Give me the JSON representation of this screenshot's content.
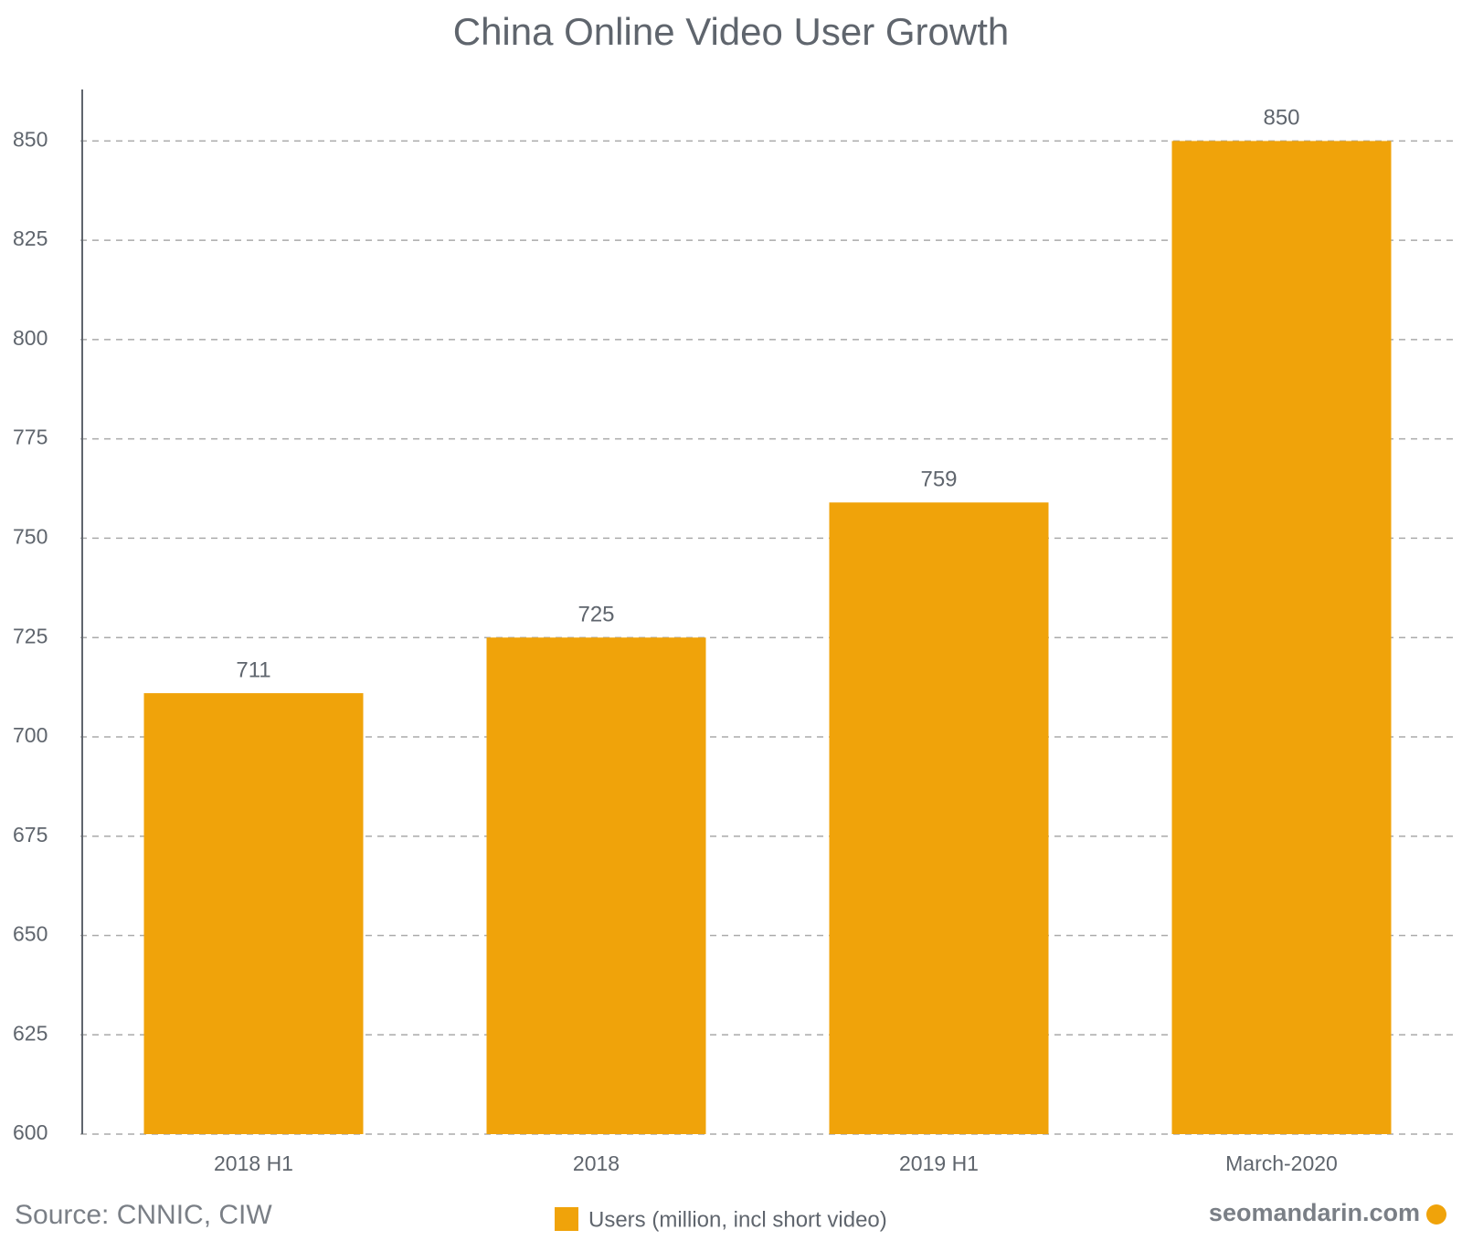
{
  "chart_data": {
    "type": "bar",
    "title": "China Online Video User Growth",
    "categories": [
      "2018 H1",
      "2018",
      "2019 H1",
      "March-2020"
    ],
    "series": [
      {
        "name": "Users (million, incl short video)",
        "color": "#f0a30a",
        "values": [
          711,
          725,
          759,
          850
        ]
      }
    ],
    "ylim": [
      600,
      862.5
    ],
    "yticks": [
      600,
      625,
      650,
      675,
      700,
      725,
      750,
      775,
      800,
      825,
      850
    ],
    "grid": true,
    "source": "Source:  CNNIC, CIW",
    "watermark": "seomandarin.com"
  }
}
